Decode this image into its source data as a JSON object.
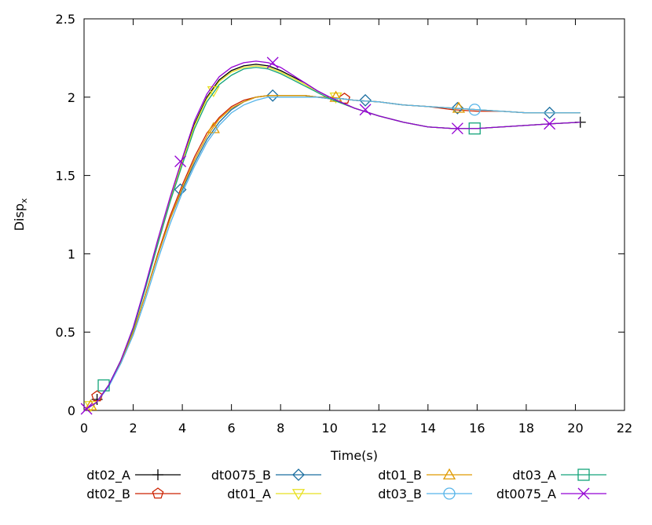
{
  "chart_data": {
    "type": "line",
    "xlabel": "Time(s)",
    "ylabel": "Disp",
    "ylabel_subscript": "x",
    "xlim": [
      0,
      22
    ],
    "ylim": [
      0,
      2.5
    ],
    "xticks": [
      "0",
      "2",
      "4",
      "6",
      "8",
      "10",
      "12",
      "14",
      "16",
      "18",
      "20",
      "22"
    ],
    "yticks": [
      "0",
      "0.5",
      "1",
      "1.5",
      "2",
      "2.5"
    ],
    "grid": false,
    "legend_position": "bottom",
    "series": [
      {
        "name": "dt02_A",
        "color": "#000000",
        "marker": "plus",
        "x": [
          0,
          0.5,
          1,
          1.5,
          2,
          2.5,
          3,
          3.5,
          4,
          4.5,
          5,
          5.5,
          6,
          6.5,
          7,
          7.5,
          8,
          8.5,
          9,
          9.5,
          10,
          11,
          12,
          13,
          14,
          15,
          16,
          17,
          18,
          19,
          20.2
        ],
        "y": [
          0,
          0.05,
          0.16,
          0.32,
          0.52,
          0.79,
          1.08,
          1.35,
          1.6,
          1.83,
          2.0,
          2.11,
          2.17,
          2.2,
          2.21,
          2.2,
          2.17,
          2.13,
          2.09,
          2.04,
          2.0,
          1.93,
          1.88,
          1.84,
          1.81,
          1.8,
          1.8,
          1.81,
          1.82,
          1.83,
          1.84
        ],
        "markers_x": [
          0.53,
          20.2
        ],
        "markers_y": [
          0.07,
          1.84
        ]
      },
      {
        "name": "dt02_B",
        "color": "#cc2200",
        "marker": "pentagon",
        "x": [
          0,
          0.5,
          1,
          1.5,
          2,
          2.5,
          3,
          3.5,
          4,
          4.5,
          5,
          5.5,
          6,
          6.5,
          7,
          7.5,
          8,
          8.5,
          9,
          9.5,
          10,
          10.5,
          11,
          12,
          13,
          14,
          15,
          16,
          17,
          18,
          19,
          20.2
        ],
        "y": [
          0,
          0.05,
          0.16,
          0.31,
          0.5,
          0.74,
          1.0,
          1.24,
          1.44,
          1.62,
          1.77,
          1.87,
          1.94,
          1.98,
          2.0,
          2.01,
          2.01,
          2.01,
          2.01,
          2.0,
          1.99,
          1.99,
          1.98,
          1.97,
          1.95,
          1.94,
          1.92,
          1.91,
          1.91,
          1.9,
          1.9,
          1.9
        ],
        "markers_x": [
          0.53,
          10.6
        ],
        "markers_y": [
          0.09,
          1.99
        ]
      },
      {
        "name": "dt0075_B",
        "color": "#1a6ea0",
        "marker": "diamond",
        "x": [
          0,
          0.5,
          1,
          1.5,
          2,
          2.5,
          3,
          3.5,
          4,
          4.5,
          5,
          5.5,
          6,
          6.5,
          7,
          7.5,
          8,
          8.5,
          9,
          9.5,
          10,
          10.5,
          11,
          12,
          13,
          14,
          15,
          16,
          17,
          18,
          19,
          20.2
        ],
        "y": [
          0,
          0.05,
          0.16,
          0.31,
          0.5,
          0.74,
          0.99,
          1.22,
          1.41,
          1.58,
          1.73,
          1.84,
          1.92,
          1.97,
          2.0,
          2.01,
          2.01,
          2.01,
          2.01,
          2.0,
          2.0,
          1.99,
          1.98,
          1.97,
          1.95,
          1.94,
          1.93,
          1.92,
          1.91,
          1.9,
          1.9,
          1.9
        ],
        "markers_x": [
          3.92,
          7.68,
          11.45,
          15.2,
          18.95
        ],
        "markers_y": [
          1.41,
          2.01,
          1.98,
          1.93,
          1.9
        ]
      },
      {
        "name": "dt01_A",
        "color": "#e8e020",
        "marker": "triangle-down",
        "x": [
          0,
          0.5,
          1,
          1.5,
          2,
          2.5,
          3,
          3.5,
          4,
          4.5,
          5,
          5.5,
          6,
          6.5,
          7,
          7.5,
          8,
          8.5,
          9,
          9.5,
          10,
          11,
          12,
          13,
          14,
          15,
          16,
          17,
          18,
          19,
          20.2
        ],
        "y": [
          0,
          0.05,
          0.16,
          0.32,
          0.52,
          0.79,
          1.08,
          1.34,
          1.59,
          1.82,
          1.99,
          2.1,
          2.16,
          2.19,
          2.2,
          2.19,
          2.16,
          2.12,
          2.08,
          2.03,
          1.99,
          1.93,
          1.88,
          1.84,
          1.81,
          1.8,
          1.8,
          1.81,
          1.82,
          1.83,
          1.84
        ],
        "markers_x": [
          0.27,
          5.27,
          10.25
        ],
        "markers_y": [
          0.03,
          2.04,
          2.0
        ]
      },
      {
        "name": "dt01_B",
        "color": "#e09a00",
        "marker": "triangle-up",
        "x": [
          0,
          0.5,
          1,
          1.5,
          2,
          2.5,
          3,
          3.5,
          4,
          4.5,
          5,
          5.5,
          6,
          6.5,
          7,
          7.5,
          8,
          8.5,
          9,
          9.5,
          10,
          10.5,
          11,
          12,
          13,
          14,
          15,
          16,
          17,
          18,
          19,
          20.2
        ],
        "y": [
          0,
          0.05,
          0.16,
          0.31,
          0.5,
          0.74,
          0.99,
          1.22,
          1.42,
          1.6,
          1.75,
          1.86,
          1.93,
          1.97,
          2.0,
          2.01,
          2.01,
          2.01,
          2.01,
          2.0,
          2.0,
          1.99,
          1.98,
          1.97,
          1.95,
          1.94,
          1.93,
          1.92,
          1.91,
          1.9,
          1.9,
          1.9
        ],
        "markers_x": [
          0.27,
          5.27,
          10.25,
          15.25
        ],
        "markers_y": [
          0.03,
          1.8,
          2.0,
          1.93
        ]
      },
      {
        "name": "dt03_B",
        "color": "#56b4e9",
        "marker": "circle",
        "x": [
          0,
          0.5,
          1,
          1.5,
          2,
          2.5,
          3,
          3.5,
          4,
          4.5,
          5,
          5.5,
          6,
          6.5,
          7,
          7.5,
          8,
          8.5,
          9,
          9.5,
          10,
          10.5,
          11,
          12,
          13,
          14,
          15,
          16,
          17,
          18,
          19,
          20.2
        ],
        "y": [
          0,
          0.05,
          0.15,
          0.3,
          0.48,
          0.71,
          0.96,
          1.19,
          1.39,
          1.56,
          1.71,
          1.82,
          1.9,
          1.95,
          1.98,
          2.0,
          2.0,
          2.0,
          2.0,
          2.0,
          1.99,
          1.99,
          1.98,
          1.97,
          1.95,
          1.94,
          1.93,
          1.92,
          1.91,
          1.9,
          1.9,
          1.9
        ],
        "markers_x": [
          15.9
        ],
        "markers_y": [
          1.92
        ]
      },
      {
        "name": "dt03_A",
        "color": "#13a47a",
        "marker": "square",
        "x": [
          0,
          0.5,
          1,
          1.5,
          2,
          2.5,
          3,
          3.5,
          4,
          4.5,
          5,
          5.5,
          6,
          6.5,
          7,
          7.5,
          8,
          8.5,
          9,
          9.5,
          10,
          11,
          12,
          13,
          14,
          15,
          16,
          17,
          18,
          19,
          20.2
        ],
        "y": [
          0,
          0.05,
          0.16,
          0.32,
          0.52,
          0.78,
          1.06,
          1.33,
          1.57,
          1.8,
          1.97,
          2.08,
          2.14,
          2.18,
          2.19,
          2.18,
          2.15,
          2.11,
          2.07,
          2.03,
          1.99,
          1.93,
          1.88,
          1.84,
          1.81,
          1.8,
          1.8,
          1.81,
          1.82,
          1.83,
          1.84
        ],
        "markers_x": [
          0.8,
          15.9
        ],
        "markers_y": [
          0.16,
          1.8
        ]
      },
      {
        "name": "dt0075_A",
        "color": "#9400d3",
        "marker": "x",
        "x": [
          0,
          0.5,
          1,
          1.5,
          2,
          2.5,
          3,
          3.5,
          4,
          4.5,
          5,
          5.5,
          6,
          6.5,
          7,
          7.5,
          8,
          8.5,
          9,
          9.5,
          10,
          11,
          12,
          13,
          14,
          15,
          16,
          17,
          18,
          19,
          20.2
        ],
        "y": [
          0,
          0.05,
          0.16,
          0.32,
          0.53,
          0.8,
          1.09,
          1.36,
          1.61,
          1.85,
          2.02,
          2.13,
          2.19,
          2.22,
          2.23,
          2.22,
          2.19,
          2.14,
          2.09,
          2.04,
          2.0,
          1.93,
          1.88,
          1.84,
          1.81,
          1.8,
          1.8,
          1.81,
          1.82,
          1.83,
          1.84
        ],
        "markers_x": [
          0.1,
          3.92,
          7.68,
          11.45,
          15.2,
          18.95
        ],
        "markers_y": [
          0.01,
          1.59,
          2.22,
          1.92,
          1.8,
          1.83
        ]
      }
    ]
  }
}
